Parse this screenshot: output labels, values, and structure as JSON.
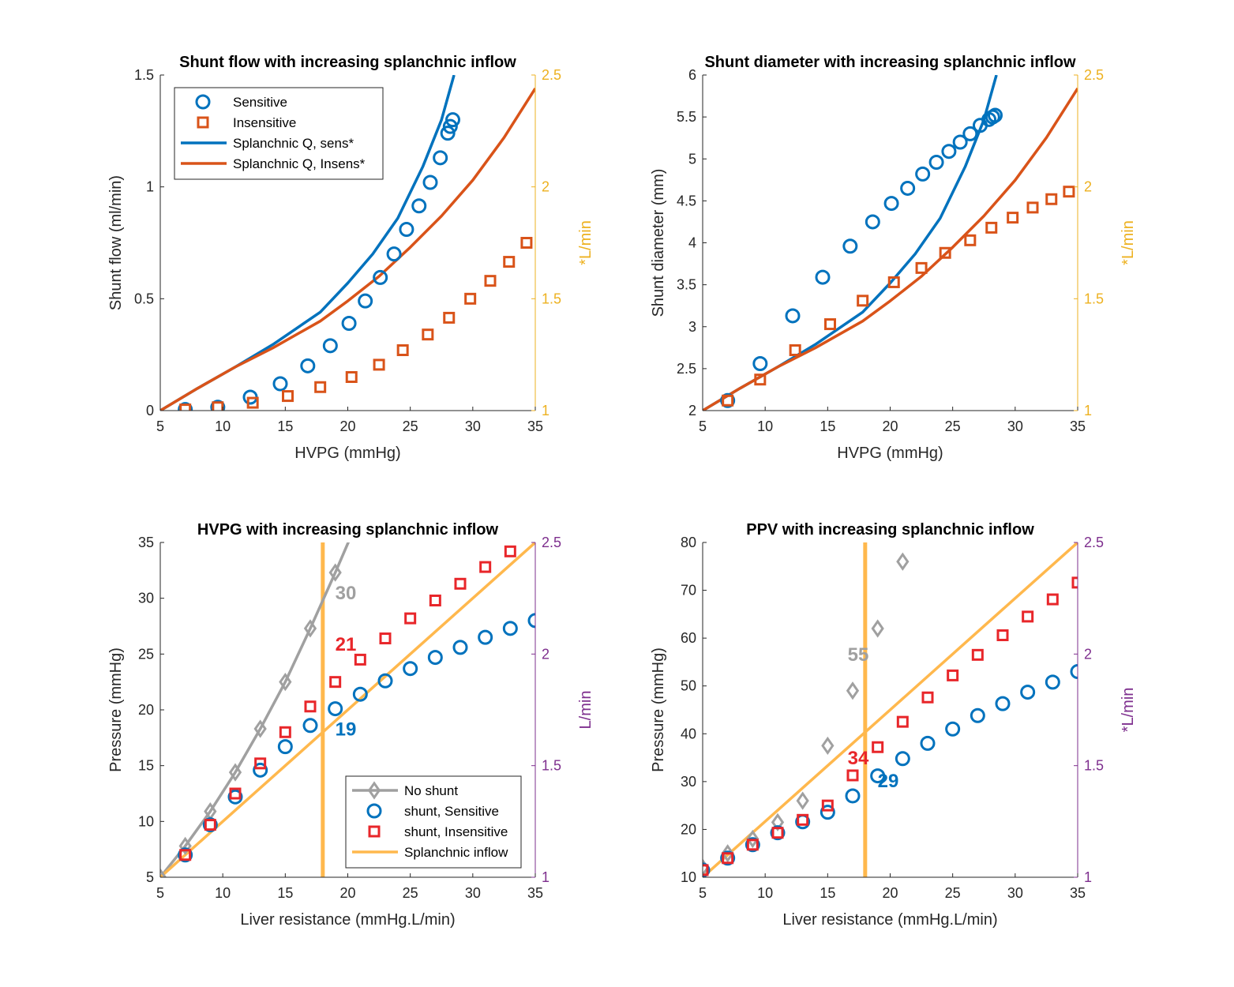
{
  "colors": {
    "blue": "#0072BD",
    "orange": "#D95319",
    "gold": "#EDB120",
    "purple": "#7E2F8E",
    "gray": "#A0A0A0",
    "red": "#E8262A",
    "lightorange": "#FFB84D",
    "axis": "#262626"
  },
  "chart_data": [
    {
      "type": "scatter",
      "title": "Shunt flow with increasing splanchnic inflow",
      "xlabel": "HVPG (mmHg)",
      "ylabel": "Shunt flow (ml/min)",
      "y2label": "*L/min",
      "xlim": [
        5,
        35
      ],
      "ylim": [
        0,
        1.5
      ],
      "y2lim": [
        1,
        2.5
      ],
      "xticks": [
        "5",
        "10",
        "15",
        "20",
        "25",
        "30",
        "35"
      ],
      "yticks": [
        "0",
        "0.5",
        "1",
        "1.5"
      ],
      "y2ticks": [
        "1",
        "1.5",
        "2",
        "2.5"
      ],
      "y2color": "gold",
      "legend": "top-left",
      "series": [
        {
          "name": "Sensitive",
          "kind": "circle",
          "color": "blue",
          "axis": "left",
          "x": [
            7.0,
            9.6,
            12.2,
            14.6,
            16.8,
            18.6,
            20.1,
            21.4,
            22.6,
            23.7,
            24.7,
            25.7,
            26.6,
            27.4,
            28.0,
            28.2,
            28.4
          ],
          "y": [
            0.005,
            0.015,
            0.06,
            0.12,
            0.2,
            0.29,
            0.39,
            0.49,
            0.595,
            0.7,
            0.81,
            0.915,
            1.02,
            1.13,
            1.24,
            1.27,
            1.3
          ]
        },
        {
          "name": "Insensitive",
          "kind": "square",
          "color": "orange",
          "axis": "left",
          "x": [
            7.0,
            9.6,
            12.4,
            15.2,
            17.8,
            20.3,
            22.5,
            24.4,
            26.4,
            28.1,
            29.8,
            31.4,
            32.9,
            34.3
          ],
          "y": [
            0.005,
            0.015,
            0.035,
            0.065,
            0.105,
            0.15,
            0.205,
            0.27,
            0.34,
            0.415,
            0.5,
            0.58,
            0.665,
            0.75
          ]
        },
        {
          "name": "Splanchnic Q, sens*",
          "kind": "line",
          "color": "blue",
          "axis": "right",
          "x": [
            5,
            8,
            11,
            14,
            17.8,
            20,
            22,
            24,
            26,
            27.5,
            28.5
          ],
          "y": [
            1.0,
            1.1,
            1.195,
            1.295,
            1.44,
            1.57,
            1.7,
            1.86,
            2.09,
            2.3,
            2.5
          ]
        },
        {
          "name": "Splanchnic Q, Insens*",
          "kind": "line",
          "color": "orange",
          "axis": "right",
          "x": [
            5,
            8,
            11,
            14,
            17.8,
            20,
            22.5,
            25,
            27.5,
            30,
            32.5,
            35
          ],
          "y": [
            1.0,
            1.1,
            1.195,
            1.28,
            1.4,
            1.49,
            1.6,
            1.73,
            1.87,
            2.03,
            2.22,
            2.44
          ]
        }
      ],
      "annotations": []
    },
    {
      "type": "scatter",
      "title": "Shunt diameter with increasing splanchnic inflow",
      "xlabel": "HVPG (mmHg)",
      "ylabel": "Shunt diameter (mm)",
      "y2label": "*L/min",
      "xlim": [
        5,
        35
      ],
      "ylim": [
        2,
        6
      ],
      "y2lim": [
        1,
        2.5
      ],
      "xticks": [
        "5",
        "10",
        "15",
        "20",
        "25",
        "30",
        "35"
      ],
      "yticks": [
        "2",
        "2.5",
        "3",
        "3.5",
        "4",
        "4.5",
        "5",
        "5.5",
        "6"
      ],
      "y2ticks": [
        "1",
        "1.5",
        "2",
        "2.5"
      ],
      "y2color": "gold",
      "legend": "none",
      "series": [
        {
          "name": "Sensitive",
          "kind": "circle",
          "color": "blue",
          "axis": "left",
          "x": [
            7.0,
            9.6,
            12.2,
            14.6,
            16.8,
            18.6,
            20.1,
            21.4,
            22.6,
            23.7,
            24.7,
            25.6,
            26.4,
            27.2,
            27.9,
            28.2,
            28.4
          ],
          "y": [
            2.12,
            2.56,
            3.13,
            3.59,
            3.96,
            4.25,
            4.47,
            4.65,
            4.82,
            4.96,
            5.09,
            5.2,
            5.3,
            5.4,
            5.47,
            5.5,
            5.52
          ]
        },
        {
          "name": "Insensitive",
          "kind": "square",
          "color": "orange",
          "axis": "left",
          "x": [
            7.0,
            9.6,
            12.4,
            15.2,
            17.8,
            20.3,
            22.5,
            24.4,
            26.4,
            28.1,
            29.8,
            31.4,
            32.9,
            34.3
          ],
          "y": [
            2.12,
            2.37,
            2.72,
            3.03,
            3.31,
            3.53,
            3.7,
            3.88,
            4.03,
            4.18,
            4.3,
            4.42,
            4.52,
            4.61
          ]
        },
        {
          "name": "Splanchnic Q, sens*",
          "kind": "line",
          "color": "blue",
          "axis": "right",
          "x": [
            5,
            8,
            11,
            14,
            17.8,
            20,
            22,
            24,
            26,
            27.5,
            28.5
          ],
          "y": [
            1.0,
            1.1,
            1.195,
            1.295,
            1.44,
            1.57,
            1.7,
            1.86,
            2.09,
            2.3,
            2.5
          ]
        },
        {
          "name": "Splanchnic Q, Insens*",
          "kind": "line",
          "color": "orange",
          "axis": "right",
          "x": [
            5,
            8,
            11,
            14,
            17.8,
            20,
            22.5,
            25,
            27.5,
            30,
            32.5,
            35
          ],
          "y": [
            1.0,
            1.1,
            1.195,
            1.28,
            1.4,
            1.49,
            1.6,
            1.73,
            1.87,
            2.03,
            2.22,
            2.44
          ]
        }
      ],
      "annotations": []
    },
    {
      "type": "scatter",
      "title": "HVPG with increasing splanchnic inflow",
      "xlabel": "Liver resistance (mmHg.L/min)",
      "ylabel": "Pressure (mmHg)",
      "y2label": "L/min",
      "xlim": [
        5,
        35
      ],
      "ylim": [
        5,
        35
      ],
      "y2lim": [
        1,
        2.5
      ],
      "xticks": [
        "5",
        "10",
        "15",
        "20",
        "25",
        "30",
        "35"
      ],
      "yticks": [
        "5",
        "10",
        "15",
        "20",
        "25",
        "30",
        "35"
      ],
      "y2ticks": [
        "1",
        "1.5",
        "2",
        "2.5"
      ],
      "y2color": "purple",
      "legend": "bottom-right",
      "vline": 18,
      "series": [
        {
          "name": "No shunt",
          "kind": "diamond-line",
          "color": "gray",
          "axis": "left",
          "x": [
            5,
            7,
            9,
            11,
            13,
            15,
            17,
            19,
            21
          ],
          "y": [
            5,
            7.8,
            10.9,
            14.4,
            18.3,
            22.5,
            27.3,
            32.3,
            37.5
          ]
        },
        {
          "name": "shunt, Sensitive",
          "kind": "circle",
          "color": "blue",
          "axis": "left",
          "x": [
            7,
            9,
            11,
            13,
            15,
            17,
            19,
            21,
            23,
            25,
            27,
            29,
            31,
            33,
            35
          ],
          "y": [
            7,
            9.7,
            12.2,
            14.6,
            16.7,
            18.6,
            20.1,
            21.4,
            22.6,
            23.7,
            24.7,
            25.6,
            26.5,
            27.3,
            28
          ]
        },
        {
          "name": "shunt, Insensitive",
          "kind": "square",
          "color": "red",
          "axis": "left",
          "x": [
            7,
            9,
            11,
            13,
            15,
            17,
            19,
            21,
            23,
            25,
            27,
            29,
            31,
            33
          ],
          "y": [
            7,
            9.7,
            12.5,
            15.2,
            18,
            20.3,
            22.5,
            24.5,
            26.4,
            28.2,
            29.8,
            31.3,
            32.8,
            34.2
          ]
        },
        {
          "name": "Splanchnic inflow",
          "kind": "line",
          "color": "lightorange",
          "axis": "right",
          "x": [
            5,
            35
          ],
          "y": [
            1,
            2.5
          ]
        }
      ],
      "annotations": [
        {
          "text": "30",
          "color": "gray",
          "x": 19,
          "y": 29.9
        },
        {
          "text": "21",
          "color": "red",
          "x": 19,
          "y": 25.3
        },
        {
          "text": "19",
          "color": "blue",
          "x": 19,
          "y": 17.7
        }
      ]
    },
    {
      "type": "scatter",
      "title": "PPV with increasing splanchnic inflow",
      "xlabel": "Liver resistance (mmHg.L/min)",
      "ylabel": "Pressure (mmHg)",
      "y2label": "*L/min",
      "xlim": [
        5,
        35
      ],
      "ylim": [
        10,
        80
      ],
      "y2lim": [
        1,
        2.5
      ],
      "xticks": [
        "5",
        "10",
        "15",
        "20",
        "25",
        "30",
        "35"
      ],
      "yticks": [
        "10",
        "20",
        "30",
        "40",
        "50",
        "60",
        "70",
        "80"
      ],
      "y2ticks": [
        "1",
        "1.5",
        "2",
        "2.5"
      ],
      "y2color": "purple",
      "legend": "none",
      "vline": 18,
      "series": [
        {
          "name": "No shunt",
          "kind": "diamond",
          "color": "gray",
          "axis": "left",
          "x": [
            5,
            7,
            9,
            11,
            13,
            15,
            17,
            19,
            21
          ],
          "y": [
            12,
            15,
            18,
            21.5,
            26,
            37.5,
            49,
            62,
            76
          ]
        },
        {
          "name": "shunt, Sensitive",
          "kind": "circle",
          "color": "blue",
          "axis": "left",
          "x": [
            5,
            7,
            9,
            11,
            13,
            15,
            17,
            19,
            21,
            23,
            25,
            27,
            29,
            31,
            33,
            35
          ],
          "y": [
            11.5,
            14,
            16.8,
            19.3,
            21.6,
            23.6,
            27,
            31.2,
            34.8,
            38,
            41,
            43.8,
            46.3,
            48.7,
            50.8,
            53
          ]
        },
        {
          "name": "shunt, Insensitive",
          "kind": "square",
          "color": "red",
          "axis": "left",
          "x": [
            5,
            7,
            9,
            11,
            13,
            15,
            17,
            19,
            21,
            23,
            25,
            27,
            29,
            31,
            33,
            35
          ],
          "y": [
            11.5,
            14,
            16.8,
            19.3,
            22,
            25,
            31.3,
            37.2,
            42.5,
            47.6,
            52.2,
            56.5,
            60.6,
            64.5,
            68.1,
            71.6
          ]
        },
        {
          "name": "Splanchnic inflow",
          "kind": "line",
          "color": "lightorange",
          "axis": "right",
          "x": [
            5,
            35
          ],
          "y": [
            1,
            2.5
          ]
        }
      ],
      "annotations": [
        {
          "text": "55",
          "color": "gray",
          "x": 16.6,
          "y": 55.2
        },
        {
          "text": "34",
          "color": "red",
          "x": 16.6,
          "y": 33.6
        },
        {
          "text": "29",
          "color": "blue",
          "x": 19,
          "y": 28.8
        }
      ]
    }
  ]
}
